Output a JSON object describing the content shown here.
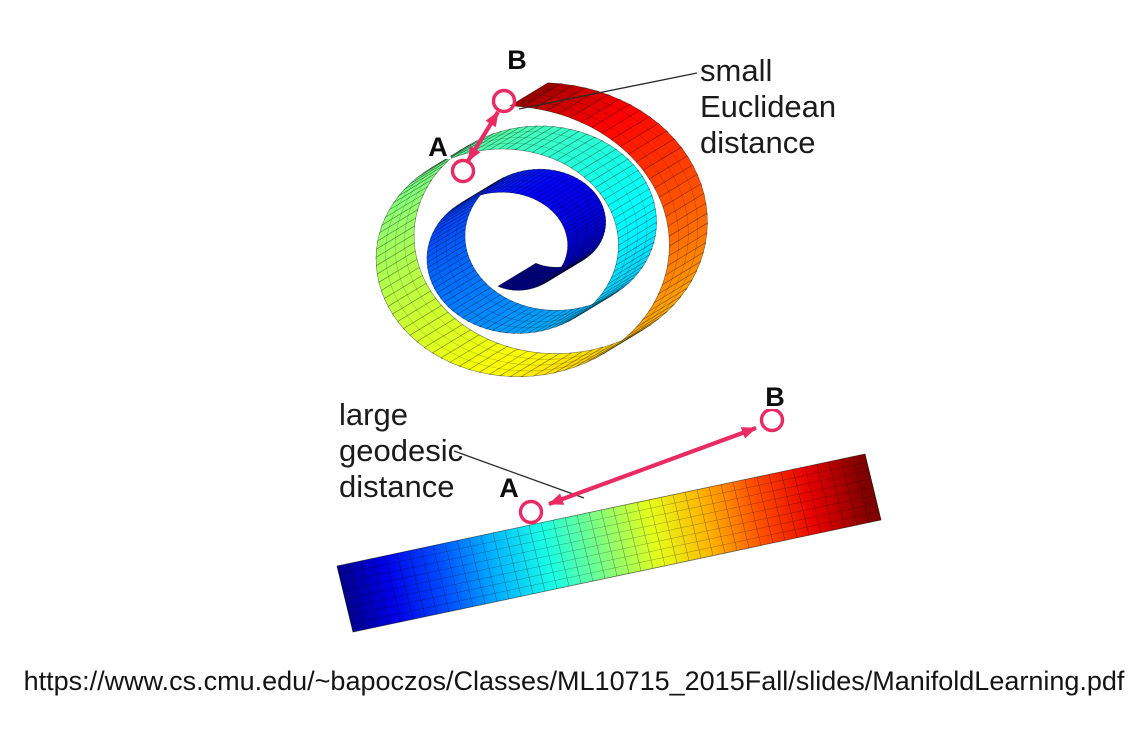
{
  "figure": {
    "roll": {
      "label_a": "A",
      "label_b": "B",
      "annotation_lines": [
        "small",
        "Euclidean",
        "distance"
      ]
    },
    "strip": {
      "label_a": "A",
      "label_b": "B",
      "annotation_lines": [
        "large",
        "geodesic",
        "distance"
      ]
    },
    "colors": {
      "highlight": "#ea2a63",
      "colormap": "jet (blue to dark red)"
    }
  },
  "caption": {
    "url": "https://www.cs.cmu.edu/~bapoczos/Classes/ML10715_2015Fall/slides/ManifoldLearning.pdf"
  }
}
